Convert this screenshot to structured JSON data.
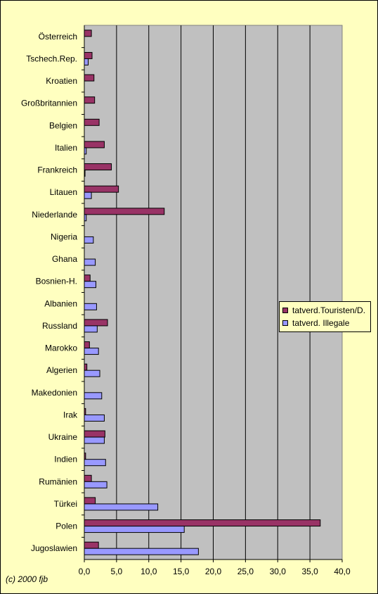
{
  "chart_data": {
    "type": "bar",
    "orientation": "horizontal",
    "categories": [
      "Österreich",
      "Tschech.Rep.",
      "Kroatien",
      "Großbritannien",
      "Belgien",
      "Italien",
      "Frankreich",
      "Litauen",
      "Niederlande",
      "Nigeria",
      "Ghana",
      "Bosnien-H.",
      "Albanien",
      "Russland",
      "Marokko",
      "Algerien",
      "Makedonien",
      "Irak",
      "Ukraine",
      "Indien",
      "Rumänien",
      "Türkei",
      "Polen",
      "Jugoslawien"
    ],
    "series": [
      {
        "name": "tatverd.Touristen/D.",
        "color": "#993366",
        "values": [
          1.1,
          1.2,
          1.5,
          1.6,
          2.3,
          3.1,
          4.2,
          5.3,
          12.4,
          0,
          0,
          0.9,
          0,
          3.6,
          0.8,
          0.4,
          0,
          0.2,
          3.2,
          0.2,
          1.1,
          1.7,
          36.6,
          2.2
        ]
      },
      {
        "name": "tatverd. Illegale",
        "color": "#9999ff",
        "values": [
          0,
          0.6,
          0,
          0,
          0,
          0.3,
          0.1,
          1.1,
          0.3,
          1.4,
          1.7,
          1.8,
          1.9,
          2.0,
          2.2,
          2.4,
          2.7,
          3.1,
          3.1,
          3.3,
          3.5,
          11.4,
          15.5,
          17.7
        ]
      }
    ],
    "xlim": [
      0,
      40
    ],
    "xticks": [
      "0,0",
      "5,0",
      "10,0",
      "15,0",
      "20,0",
      "25,0",
      "30,0",
      "35,0",
      "40,0"
    ],
    "grid": true,
    "legend_position": "right",
    "plot_background": "#c0c0c0",
    "chart_background": "#ffffc0"
  },
  "legend": {
    "items": [
      {
        "label": "tatverd.Touristen/D.",
        "color": "#993366"
      },
      {
        "label": "tatverd. Illegale",
        "color": "#9999ff"
      }
    ]
  },
  "copyright": "(c) 2000 fjb"
}
